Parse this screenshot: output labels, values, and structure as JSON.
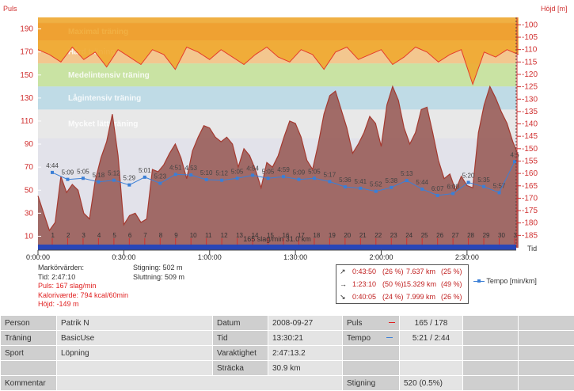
{
  "chart_data": {
    "type": "area",
    "left_axis": {
      "label": "Puls",
      "ticks": [
        10,
        30,
        50,
        70,
        90,
        110,
        130,
        150,
        170,
        190
      ],
      "range": [
        0,
        200
      ]
    },
    "right_axis": {
      "label": "Höjd [m]",
      "ticks": [
        -100,
        -105,
        -110,
        -115,
        -120,
        -125,
        -130,
        -135,
        -140,
        -145,
        -150,
        -155,
        -160,
        -165,
        -170,
        -175,
        -180,
        -185
      ],
      "range": [
        -97,
        -190
      ]
    },
    "x_axis": {
      "label": "Tid",
      "ticks": [
        "0:00:00",
        "0:30:00",
        "1:00:00",
        "1:30:00",
        "2:00:00",
        "2:30:00"
      ]
    },
    "zones": [
      {
        "name": "Maximal träning",
        "from": 180,
        "to": 195,
        "color": "#e8604a"
      },
      {
        "name": "Hård träning",
        "from": 160,
        "to": 180,
        "color": "#f3c78f"
      },
      {
        "name": "Medelintensiv träning",
        "from": 140,
        "to": 160,
        "color": "#c9e3a3"
      },
      {
        "name": "Lågintensiv träning",
        "from": 120,
        "to": 140,
        "color": "#bfdbe6"
      },
      {
        "name": "Mycket lätt träning",
        "from": 95,
        "to": 120,
        "color": "#e8e8e8"
      }
    ],
    "series": [
      {
        "name": "Puls",
        "color": "#a43a30",
        "fill": "#9a5f5b",
        "t_min": [
          0,
          2,
          4,
          6,
          8,
          10,
          12,
          14,
          16,
          18,
          20,
          22,
          24,
          26,
          28,
          30,
          32,
          34,
          36,
          38,
          40,
          42,
          44,
          46,
          48,
          50,
          52,
          54,
          56,
          58,
          60,
          62,
          64,
          66,
          68,
          70,
          72,
          74,
          76,
          78,
          80,
          82,
          84,
          86,
          88,
          90,
          92,
          94,
          96,
          98,
          100,
          102,
          104,
          106,
          108,
          110,
          112,
          114,
          116,
          118,
          120,
          122,
          124,
          126,
          128,
          130,
          132,
          134,
          136,
          138,
          140,
          142,
          144,
          146,
          148,
          150,
          152,
          154,
          156,
          158,
          160,
          162,
          164,
          166,
          168
        ],
        "values": [
          45,
          30,
          15,
          22,
          62,
          48,
          55,
          50,
          30,
          25,
          58,
          78,
          92,
          116,
          80,
          20,
          28,
          30,
          22,
          25,
          68,
          66,
          72,
          82,
          90,
          78,
          60,
          84,
          96,
          106,
          104,
          96,
          92,
          96,
          90,
          70,
          86,
          80,
          68,
          52,
          74,
          70,
          80,
          96,
          110,
          108,
          96,
          76,
          68,
          90,
          116,
          132,
          136,
          120,
          104,
          82,
          90,
          100,
          114,
          108,
          88,
          124,
          140,
          128,
          104,
          90,
          100,
          120,
          122,
          100,
          76,
          60,
          64,
          50,
          62,
          54,
          52,
          100,
          124,
          140,
          130,
          118,
          108,
          92,
          80
        ]
      },
      {
        "name": "Höjd",
        "color": "#e53b2b",
        "fill": "#f0a830",
        "t_min": [
          0,
          4,
          8,
          12,
          16,
          20,
          24,
          28,
          32,
          36,
          40,
          44,
          48,
          52,
          56,
          60,
          64,
          68,
          72,
          76,
          80,
          84,
          88,
          92,
          96,
          100,
          104,
          108,
          112,
          116,
          120,
          124,
          128,
          132,
          136,
          140,
          144,
          148,
          152,
          156,
          160,
          164,
          168
        ],
        "values": [
          -110,
          -112,
          -115,
          -109,
          -114,
          -111,
          -117,
          -110,
          -113,
          -116,
          -110,
          -112,
          -118,
          -109,
          -111,
          -114,
          -110,
          -113,
          -116,
          -112,
          -109,
          -113,
          -115,
          -110,
          -112,
          -118,
          -111,
          -109,
          -114,
          -112,
          -110,
          -116,
          -113,
          -109,
          -111,
          -115,
          -112,
          -110,
          -124,
          -111,
          -113,
          -110,
          -112
        ]
      },
      {
        "name": "Tempo",
        "color": "#3b7fd6",
        "lap_labels": [
          "4:44",
          "5:09",
          "5:05",
          "5:18",
          "5:12",
          "5:29",
          "5:01",
          "5:23",
          "4:51",
          "4:53",
          "5:10",
          "5:12",
          "5:05",
          "4:54",
          "5:05",
          "4:59",
          "5:09",
          "5:05",
          "5:17",
          "5:36",
          "5:41",
          "5:52",
          "5:38",
          "5:13",
          "5:44",
          "6:07",
          "6:00",
          "5:20",
          "5:35",
          "5:57",
          "4:5"
        ]
      }
    ],
    "km_ticks": [
      "1",
      "2",
      "3",
      "4",
      "5",
      "6",
      "7",
      "8",
      "9",
      "10",
      "11",
      "12",
      "13",
      "14",
      "15",
      "16",
      "17",
      "18",
      "19",
      "20",
      "21",
      "22",
      "23",
      "24",
      "25",
      "26",
      "27",
      "28",
      "29",
      "30",
      "3"
    ],
    "bottom_label": "165 slag/min 31.0 km"
  },
  "marker": {
    "title": "Markörvärden:",
    "time": "Tid: 2:47:10",
    "pulse": "Puls: 167 slag/min",
    "calories": "Kaloriværde: 794 kcal/60min",
    "height": "Höjd: -149 m",
    "ascent": "Stigning: 502 m",
    "descent": "Sluttning: 509 m"
  },
  "laps": [
    {
      "arrow": "↗",
      "time": "0:43:50",
      "pct": "(26 %)",
      "dist": "7.637 km",
      "dpct": "(25 %)"
    },
    {
      "arrow": "→",
      "time": "1:23:10",
      "pct": "(50 %)",
      "dist": "15.329 km",
      "dpct": "(49 %)"
    },
    {
      "arrow": "↘",
      "time": "0:40:05",
      "pct": "(24 %)",
      "dist": "7.999 km",
      "dpct": "(26 %)"
    }
  ],
  "legend": {
    "tempo": "Tempo [min/km]"
  },
  "table": {
    "person_lbl": "Person",
    "person": "Patrik N",
    "datum_lbl": "Datum",
    "datum": "2008-09-27",
    "puls_lbl": "Puls",
    "puls": "165 / 178",
    "traning_lbl": "Träning",
    "traning": "BasicUse",
    "tid_lbl": "Tid",
    "tid": "13:30:21",
    "tempo_lbl": "Tempo",
    "tempo": "5:21 / 2:44",
    "sport_lbl": "Sport",
    "sport": "Löpning",
    "varaktighet_lbl": "Varaktighet",
    "varaktighet": "2:47:13.2",
    "stracka_lbl": "Sträcka",
    "stracka": "30.9 km",
    "kommentar_lbl": "Kommentar",
    "stigning_lbl": "Stigning",
    "stigning": "520 (0.5%)"
  },
  "colors": {
    "puls_marker": "#e02020",
    "tempo_marker": "#3b7fd6",
    "base_bar": "#2846b8"
  }
}
